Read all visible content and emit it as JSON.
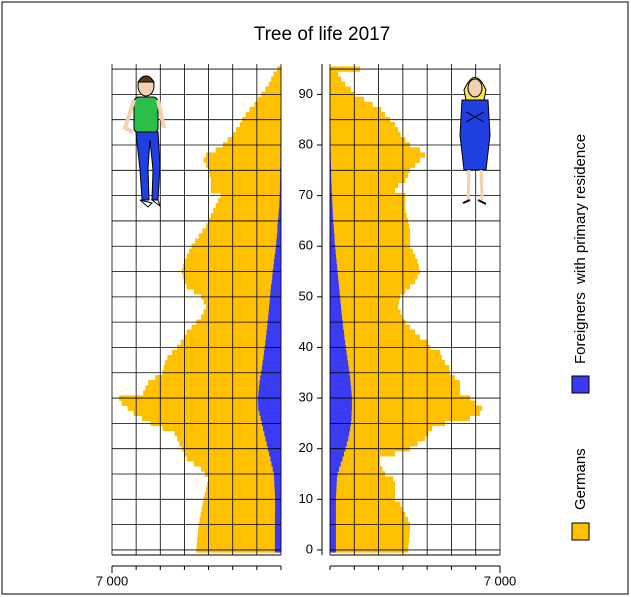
{
  "chart_data": {
    "type": "pyramid",
    "title": "Tree of life 2017",
    "ages": [
      0,
      1,
      2,
      3,
      4,
      5,
      6,
      7,
      8,
      9,
      10,
      11,
      12,
      13,
      14,
      15,
      16,
      17,
      18,
      19,
      20,
      21,
      22,
      23,
      24,
      25,
      26,
      27,
      28,
      29,
      30,
      31,
      32,
      33,
      34,
      35,
      36,
      37,
      38,
      39,
      40,
      41,
      42,
      43,
      44,
      45,
      46,
      47,
      48,
      49,
      50,
      51,
      52,
      53,
      54,
      55,
      56,
      57,
      58,
      59,
      60,
      61,
      62,
      63,
      64,
      65,
      66,
      67,
      68,
      69,
      70,
      71,
      72,
      73,
      74,
      75,
      76,
      77,
      78,
      79,
      80,
      81,
      82,
      83,
      84,
      85,
      86,
      87,
      88,
      89,
      90,
      91,
      92,
      93,
      94,
      95
    ],
    "series": [
      {
        "name": "Foreigners  with primary residence",
        "color": "#3a3af2",
        "left": [
          260,
          260,
          260,
          260,
          260,
          260,
          255,
          255,
          250,
          250,
          250,
          260,
          270,
          280,
          290,
          300,
          350,
          400,
          450,
          500,
          550,
          600,
          650,
          700,
          750,
          800,
          850,
          900,
          950,
          955,
          960,
          940,
          920,
          900,
          870,
          830,
          800,
          770,
          740,
          710,
          680,
          660,
          630,
          610,
          580,
          560,
          540,
          520,
          500,
          480,
          460,
          440,
          420,
          390,
          370,
          350,
          320,
          300,
          270,
          240,
          220,
          200,
          180,
          160,
          150,
          130,
          110,
          100,
          80,
          70,
          60,
          55,
          50,
          45,
          40,
          40,
          35,
          35,
          30,
          30,
          25,
          25,
          20,
          20,
          15,
          15,
          10,
          10,
          10,
          5,
          5,
          5,
          0,
          0,
          0,
          0
        ],
        "right": [
          250,
          250,
          250,
          250,
          250,
          250,
          250,
          250,
          250,
          250,
          250,
          260,
          270,
          280,
          290,
          320,
          380,
          450,
          520,
          580,
          640,
          700,
          760,
          800,
          840,
          870,
          890,
          900,
          910,
          910,
          910,
          900,
          880,
          860,
          840,
          810,
          780,
          750,
          720,
          690,
          660,
          630,
          600,
          580,
          550,
          530,
          500,
          480,
          460,
          440,
          420,
          400,
          380,
          360,
          340,
          320,
          300,
          280,
          260,
          240,
          220,
          200,
          190,
          170,
          160,
          140,
          130,
          120,
          110,
          100,
          90,
          80,
          70,
          60,
          55,
          50,
          45,
          40,
          40,
          35,
          30,
          30,
          25,
          25,
          20,
          20,
          15,
          15,
          10,
          10,
          10,
          5,
          5,
          5,
          0,
          0
        ]
      },
      {
        "name": "Germans",
        "color": "#ffc000",
        "left": [
          3240,
          3220,
          3200,
          3180,
          3160,
          3140,
          3105,
          3065,
          3030,
          2990,
          2950,
          2890,
          2830,
          2770,
          2710,
          2850,
          2950,
          3200,
          3450,
          3500,
          3550,
          3600,
          3650,
          3700,
          4150,
          4600,
          4900,
          5200,
          5400,
          5645,
          5740,
          4760,
          4680,
          4600,
          4330,
          4070,
          4050,
          4030,
          3960,
          3790,
          3620,
          3490,
          3370,
          3290,
          3120,
          2940,
          2760,
          2680,
          2600,
          2720,
          2840,
          3160,
          3480,
          3610,
          3680,
          3750,
          3730,
          3700,
          3630,
          3560,
          3480,
          3350,
          3220,
          3090,
          2950,
          2870,
          2790,
          2700,
          2620,
          2530,
          2440,
          2845,
          2850,
          2855,
          2910,
          2960,
          3065,
          3165,
          3070,
          2670,
          2375,
          2175,
          1980,
          1830,
          1685,
          1585,
          1440,
          1290,
          1090,
          945,
          795,
          645,
          500,
          400,
          300,
          150
        ],
        "right": [
          2960,
          2980,
          3000,
          3020,
          3040,
          3040,
          2950,
          2850,
          2710,
          2650,
          2420,
          2410,
          2400,
          2390,
          2310,
          1940,
          1770,
          1610,
          1540,
          2090,
          2650,
          2900,
          3150,
          3250,
          3360,
          3860,
          4870,
          5270,
          5350,
          5060,
          4850,
          4450,
          4470,
          4490,
          4300,
          4130,
          4120,
          3980,
          3880,
          3840,
          3460,
          3370,
          3100,
          2920,
          2740,
          2570,
          2460,
          2420,
          2340,
          2400,
          2460,
          2700,
          2910,
          3140,
          3260,
          3380,
          3350,
          3320,
          3240,
          3160,
          3070,
          3090,
          3100,
          3120,
          3090,
          3070,
          3020,
          2980,
          2980,
          2990,
          3000,
          2590,
          2730,
          3030,
          3145,
          3240,
          3455,
          3660,
          3870,
          3665,
          3260,
          3070,
          2875,
          2775,
          2650,
          2450,
          2245,
          2085,
          1740,
          1390,
          1020,
          845,
          615,
          445,
          330,
          1230
        ]
      }
    ],
    "xlim": [
      0,
      7000
    ],
    "xticks": [
      {
        "value": 7000,
        "label": "7 000"
      }
    ],
    "xgrid": [
      0,
      1000,
      2000,
      3000,
      4000,
      5000,
      6000,
      7000
    ],
    "ylim": [
      -1,
      96
    ],
    "yticks": [
      0,
      10,
      20,
      30,
      40,
      50,
      60,
      70,
      80,
      90
    ],
    "ygrid": [
      0,
      5,
      10,
      15,
      20,
      25,
      30,
      35,
      40,
      45,
      50,
      55,
      60,
      65,
      70,
      75,
      80,
      85,
      90,
      95
    ]
  }
}
